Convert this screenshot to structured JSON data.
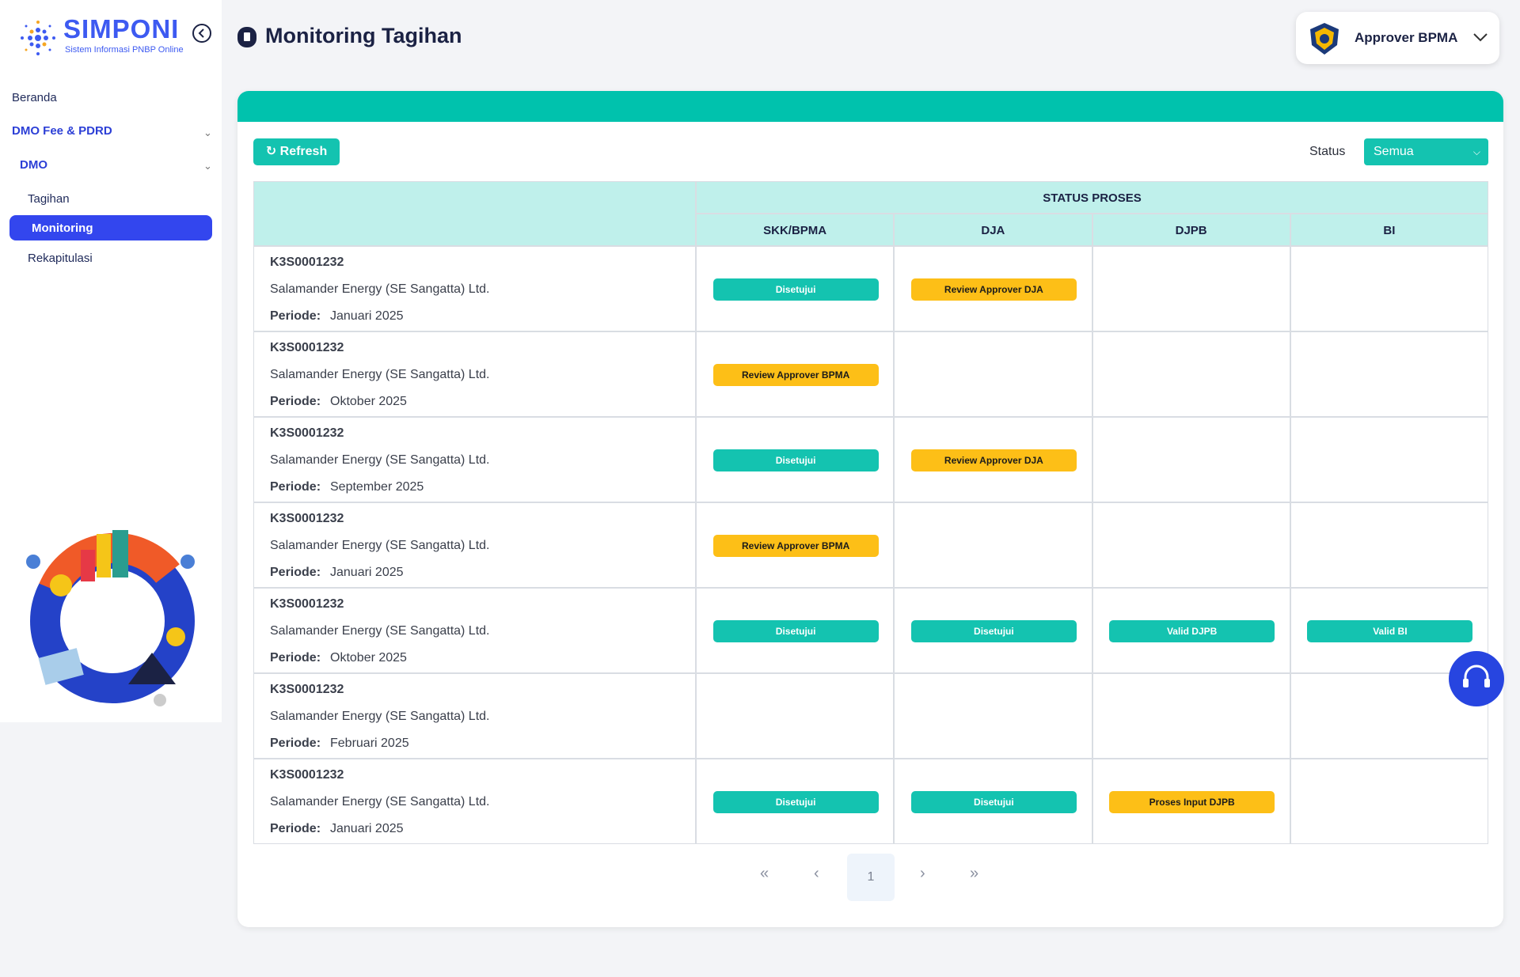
{
  "sidebar": {
    "logo_title": "SIMPONI",
    "logo_subtitle": "Sistem Informasi PNBP Online",
    "menu": [
      "Beranda",
      "DMO Fee & PDRD",
      "DMO",
      "Tagihan",
      "Monitoring",
      "Rekapitulasi"
    ]
  },
  "header": {
    "title": "Monitoring Tagihan",
    "user": "Approver BPMA"
  },
  "toolbar": {
    "refresh": "Refresh",
    "status_label": "Status",
    "status_value": "Semua"
  },
  "table": {
    "group_header": "STATUS PROSES",
    "columns": [
      "SKK/BPMA",
      "DJA",
      "DJPB",
      "BI"
    ],
    "rows": [
      {
        "id": "K3S0001232",
        "company": "Salamander Energy (SE Sangatta) Ltd.",
        "period_label": "Periode:",
        "period": "Januari 2025",
        "statuses": [
          {
            "label": "Disetujui",
            "color": "#14c3b0"
          },
          {
            "label": "Review Approver DJA",
            "color": "#fdbf17"
          },
          null,
          null
        ]
      },
      {
        "id": "K3S0001232",
        "company": "Salamander Energy (SE Sangatta) Ltd.",
        "period_label": "Periode:",
        "period": "Oktober 2025",
        "statuses": [
          {
            "label": "Review Approver BPMA",
            "color": "#fdbf17"
          },
          null,
          null,
          null
        ]
      },
      {
        "id": "K3S0001232",
        "company": "Salamander Energy (SE Sangatta) Ltd.",
        "period_label": "Periode:",
        "period": "September 2025",
        "statuses": [
          {
            "label": "Disetujui",
            "color": "#14c3b0"
          },
          {
            "label": "Review Approver DJA",
            "color": "#fdbf17"
          },
          null,
          null
        ]
      },
      {
        "id": "K3S0001232",
        "company": "Salamander Energy (SE Sangatta) Ltd.",
        "period_label": "Periode:",
        "period": "Januari 2025",
        "statuses": [
          {
            "label": "Review Approver BPMA",
            "color": "#fdbf17"
          },
          null,
          null,
          null
        ]
      },
      {
        "id": "K3S0001232",
        "company": "Salamander Energy (SE Sangatta) Ltd.",
        "period_label": "Periode:",
        "period": "Oktober 2025",
        "statuses": [
          {
            "label": "Disetujui",
            "color": "#14c3b0"
          },
          {
            "label": "Disetujui",
            "color": "#14c3b0"
          },
          {
            "label": "Valid DJPB",
            "color": "#14c3b0"
          },
          {
            "label": "Valid BI",
            "color": "#14c3b0"
          }
        ]
      },
      {
        "id": "K3S0001232",
        "company": "Salamander Energy (SE Sangatta) Ltd.",
        "period_label": "Periode:",
        "period": "Februari 2025",
        "statuses": [
          null,
          null,
          null,
          null
        ]
      },
      {
        "id": "K3S0001232",
        "company": "Salamander Energy (SE Sangatta) Ltd.",
        "period_label": "Periode:",
        "period": "Januari 2025",
        "statuses": [
          {
            "label": "Disetujui",
            "color": "#14c3b0"
          },
          {
            "label": "Disetujui",
            "color": "#14c3b0"
          },
          {
            "label": "Proses Input DJPB",
            "color": "#fdbf17"
          },
          null
        ]
      }
    ]
  },
  "pagination": {
    "current": 1
  }
}
